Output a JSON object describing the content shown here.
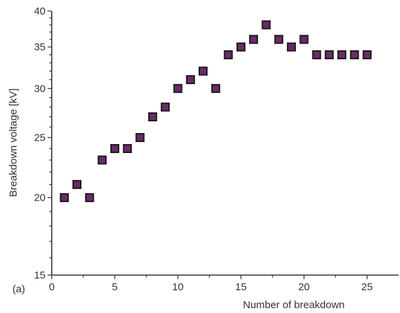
{
  "panel_label": "(a)",
  "colors": {
    "marker_fill": "#6b2a6b",
    "marker_edge": "#1a1a1a",
    "axis": "#333333"
  },
  "chart_data": {
    "type": "scatter",
    "title": "",
    "xlabel": "Number of breakdown",
    "ylabel": "Breakdown voltage [kV]",
    "xlim": [
      0,
      27.5
    ],
    "ylim": [
      15,
      40
    ],
    "y_scale": "log",
    "x_ticks": [
      0,
      5,
      10,
      15,
      20,
      25
    ],
    "y_ticks": [
      15,
      20,
      25,
      30,
      35,
      40
    ],
    "grid": false,
    "legend": "none",
    "marker": "square",
    "x": [
      1,
      2,
      3,
      4,
      5,
      6,
      7,
      8,
      9,
      10,
      11,
      12,
      13,
      14,
      15,
      16,
      17,
      18,
      19,
      20,
      21,
      22,
      23,
      24,
      25
    ],
    "y": [
      20,
      21,
      20,
      23,
      24,
      24,
      25,
      27,
      28,
      30,
      31,
      32,
      30,
      34,
      35,
      36,
      38,
      36,
      35,
      36,
      34,
      34,
      34,
      34,
      34
    ]
  }
}
